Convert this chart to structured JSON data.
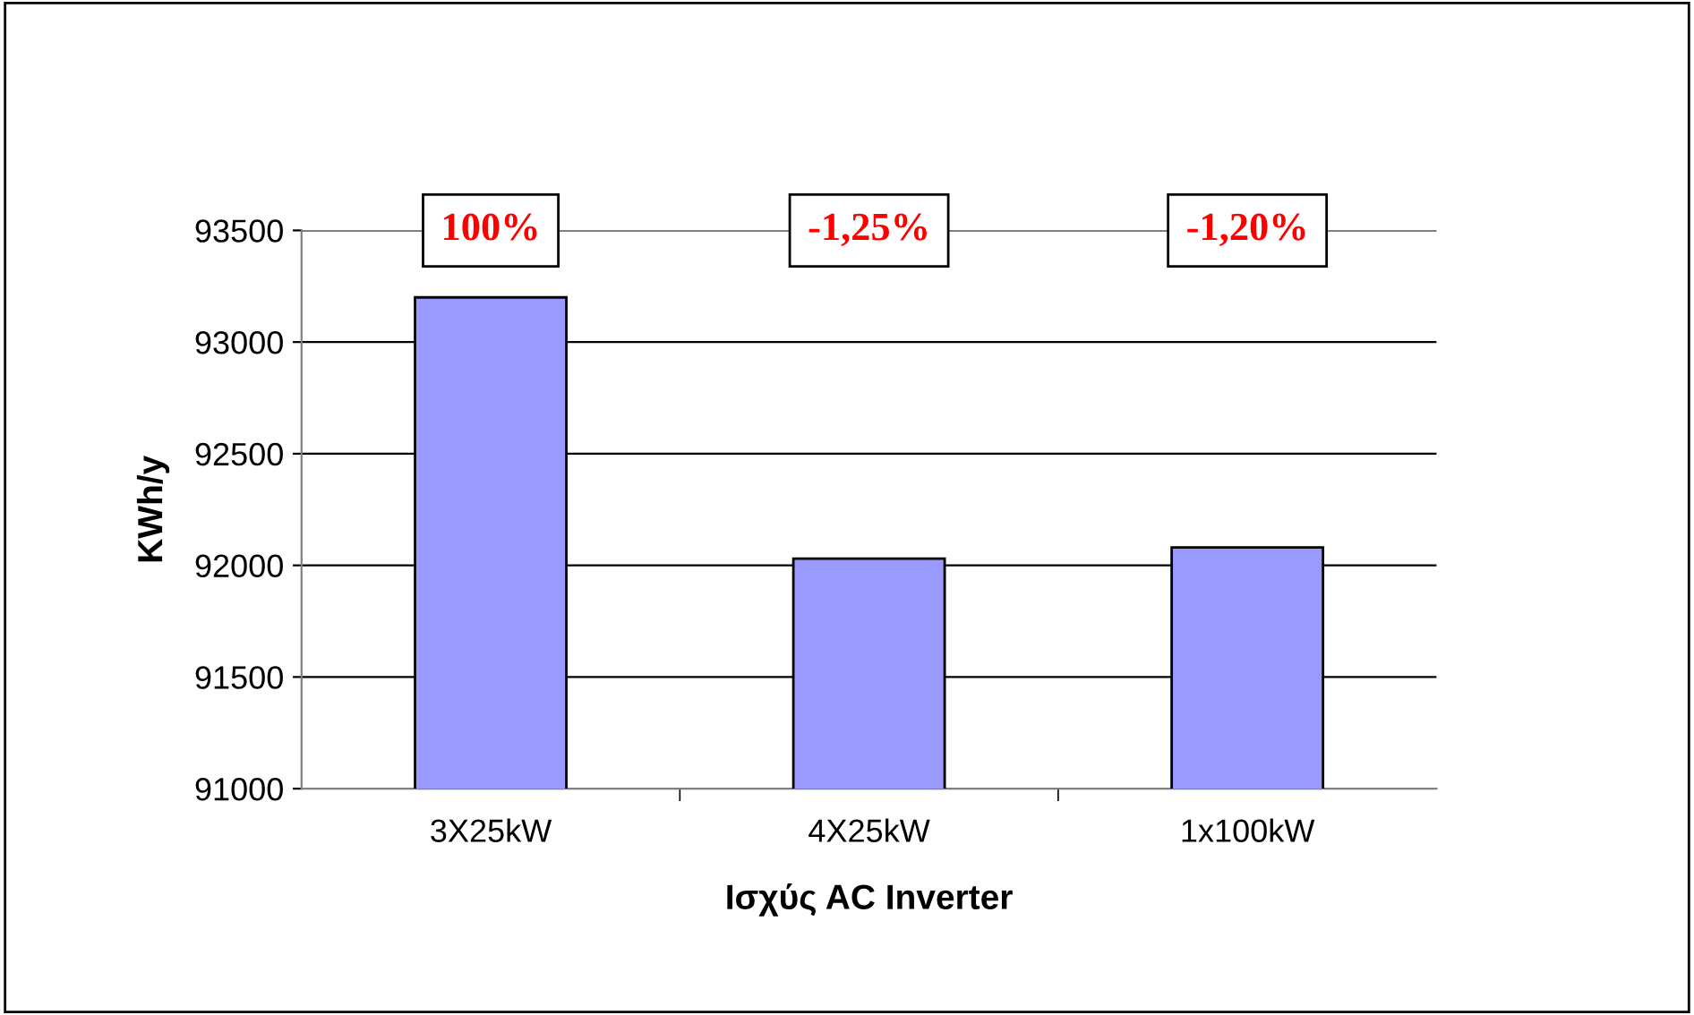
{
  "chart_data": {
    "type": "bar",
    "xlabel": "Ισχύς AC Inverter",
    "ylabel": "KWh/y",
    "categories": [
      "3X25kW",
      "4X25kW",
      "1x100kW"
    ],
    "series": [
      {
        "color": "#9999ff",
        "values": [
          93200,
          92030,
          92080
        ]
      }
    ],
    "ylim": [
      91000,
      93500
    ],
    "yticks": [
      91000,
      91500,
      92000,
      92500,
      93000,
      93500
    ],
    "grid": "y",
    "legend": false,
    "annotations": [
      "100%",
      "-1,25%",
      "-1,20%"
    ]
  }
}
